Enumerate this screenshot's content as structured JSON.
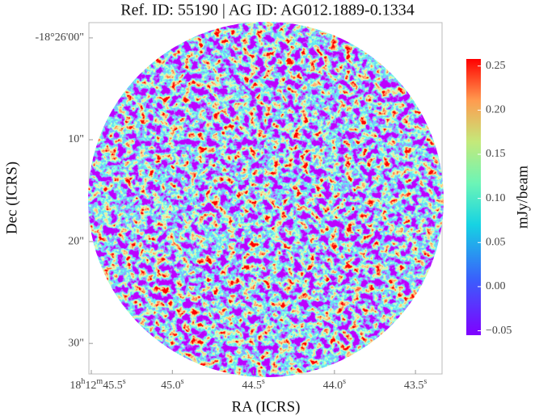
{
  "chart_data": {
    "type": "image",
    "title": "Ref. ID: 55190 | AG ID: AG012.1889-0.1334",
    "x_label": "RA (ICRS)",
    "y_label": "Dec (ICRS)",
    "xlim": [
      45.515,
      43.336
    ],
    "xticks": [
      {
        "value": 45.5,
        "label": "18h12m45.5s"
      },
      {
        "value": 45.0,
        "label": "45.0s"
      },
      {
        "value": 44.5,
        "label": "44.5s"
      },
      {
        "value": 44.0,
        "label": "44.0s"
      },
      {
        "value": 43.5,
        "label": "43.5s"
      }
    ],
    "ylim": [
      -1.5,
      33.0
    ],
    "yticks": [
      {
        "value": 0,
        "label": "-18°26'00\""
      },
      {
        "value": 10,
        "label": "10\""
      },
      {
        "value": 20,
        "label": "20\""
      },
      {
        "value": 30,
        "label": "30\""
      }
    ],
    "colormap": "rainbow",
    "colorbar": {
      "label": "mJy/beam",
      "clim": [
        -0.055,
        0.258
      ],
      "ticks": [
        {
          "value": 0.25,
          "label": "0.25"
        },
        {
          "value": 0.2,
          "label": "0.20"
        },
        {
          "value": 0.15,
          "label": "0.15"
        },
        {
          "value": 0.1,
          "label": "0.10"
        },
        {
          "value": 0.05,
          "label": "0.05"
        },
        {
          "value": 0,
          "label": "0.00"
        },
        {
          "value": -0.05,
          "label": "−0.05"
        }
      ]
    }
  }
}
